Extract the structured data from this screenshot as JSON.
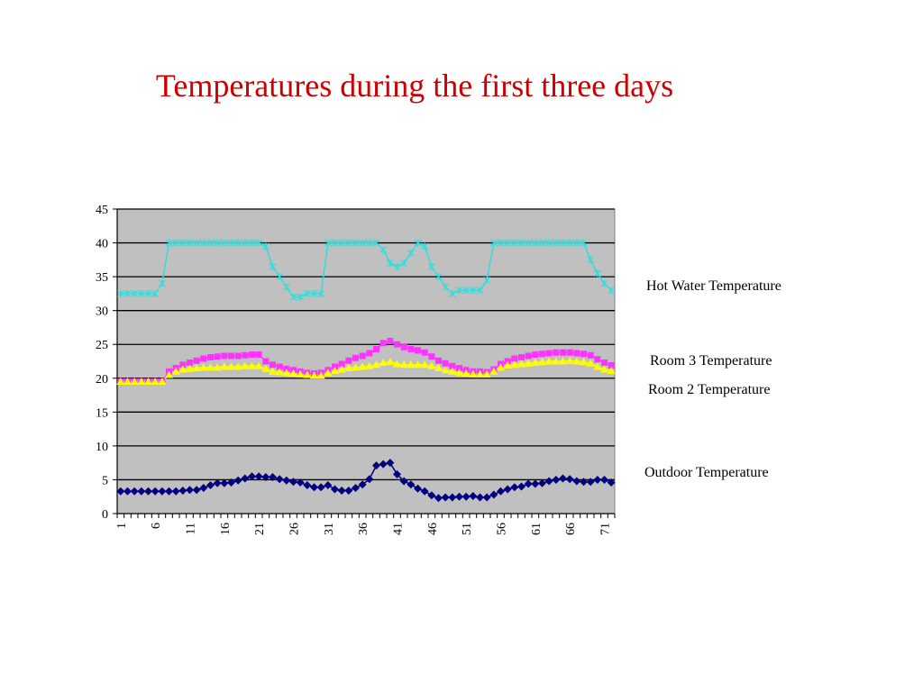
{
  "title": "Temperatures during the first three days",
  "chart_data": {
    "type": "line",
    "title": "Temperatures during the first three days",
    "xlabel": "",
    "ylabel": "",
    "ylim": [
      0,
      45
    ],
    "yticks": [
      0,
      5,
      10,
      15,
      20,
      25,
      30,
      35,
      40,
      45
    ],
    "x": [
      1,
      2,
      3,
      4,
      5,
      6,
      7,
      8,
      9,
      10,
      11,
      12,
      13,
      14,
      15,
      16,
      17,
      18,
      19,
      20,
      21,
      22,
      23,
      24,
      25,
      26,
      27,
      28,
      29,
      30,
      31,
      32,
      33,
      34,
      35,
      36,
      37,
      38,
      39,
      40,
      41,
      42,
      43,
      44,
      45,
      46,
      47,
      48,
      49,
      50,
      51,
      52,
      53,
      54,
      55,
      56,
      57,
      58,
      59,
      60,
      61,
      62,
      63,
      64,
      65,
      66,
      67,
      68,
      69,
      70,
      71,
      72
    ],
    "xtick_labels": [
      "1",
      "6",
      "11",
      "16",
      "21",
      "26",
      "31",
      "36",
      "41",
      "46",
      "51",
      "56",
      "61",
      "66",
      "71"
    ],
    "plot_background": "#c0c0c0",
    "grid": true,
    "legend_placement": "right",
    "series": [
      {
        "name": "Hot Water Temperature",
        "color": "#33dddd",
        "marker": "star",
        "values": [
          32.5,
          32.5,
          32.5,
          32.5,
          32.5,
          32.5,
          34,
          40,
          40,
          40,
          40,
          40,
          40,
          40,
          40,
          40,
          40,
          40,
          40,
          40,
          40,
          39.5,
          36.5,
          35,
          33.5,
          32,
          32,
          32.5,
          32.5,
          32.5,
          40,
          40,
          40,
          40,
          40,
          40,
          40,
          40,
          39,
          37,
          36.5,
          37,
          38.5,
          40,
          39.5,
          36.5,
          35,
          33.5,
          32.5,
          33,
          33,
          33,
          33,
          34.5,
          40,
          40,
          40,
          40,
          40,
          40,
          40,
          40,
          40,
          40,
          40,
          40,
          40,
          40,
          37.5,
          35.5,
          34,
          33
        ]
      },
      {
        "name": "Room 3 Temperature",
        "color": "#ff33ff",
        "marker": "square",
        "values": [
          19.5,
          19.5,
          19.5,
          19.5,
          19.5,
          19.5,
          19.5,
          21,
          21.5,
          22,
          22.3,
          22.6,
          22.9,
          23.1,
          23.2,
          23.3,
          23.3,
          23.3,
          23.4,
          23.5,
          23.5,
          22.5,
          22,
          21.7,
          21.4,
          21.2,
          21,
          20.8,
          20.7,
          20.8,
          21.2,
          21.7,
          22.1,
          22.6,
          23,
          23.3,
          23.7,
          24.3,
          25.2,
          25.5,
          25,
          24.6,
          24.3,
          24.1,
          23.8,
          23.2,
          22.6,
          22.2,
          21.8,
          21.5,
          21.2,
          21,
          21,
          20.9,
          21.3,
          22.1,
          22.5,
          22.9,
          23.1,
          23.3,
          23.5,
          23.6,
          23.7,
          23.8,
          23.8,
          23.8,
          23.7,
          23.6,
          23.4,
          22.8,
          22.3,
          21.9
        ]
      },
      {
        "name": "Room 2 Temperature",
        "color": "#ffff00",
        "marker": "triangle",
        "values": [
          19.5,
          19.5,
          19.5,
          19.5,
          19.5,
          19.5,
          19.5,
          20.5,
          21,
          21.3,
          21.4,
          21.5,
          21.6,
          21.6,
          21.6,
          21.7,
          21.7,
          21.7,
          21.8,
          21.8,
          21.8,
          21.4,
          21,
          20.9,
          20.8,
          20.7,
          20.6,
          20.5,
          20.4,
          20.4,
          20.8,
          21.1,
          21.3,
          21.5,
          21.6,
          21.7,
          21.8,
          22,
          22.3,
          22.4,
          22.1,
          22,
          22,
          22,
          22,
          21.8,
          21.5,
          21.2,
          21,
          20.8,
          20.7,
          20.6,
          20.6,
          20.6,
          21,
          21.6,
          21.9,
          22,
          22.1,
          22.2,
          22.3,
          22.4,
          22.5,
          22.5,
          22.5,
          22.6,
          22.5,
          22.4,
          22.2,
          21.7,
          21.3,
          21.1
        ]
      },
      {
        "name": "Outdoor Temperature",
        "color": "#000080",
        "marker": "diamond",
        "values": [
          3.3,
          3.3,
          3.3,
          3.3,
          3.3,
          3.3,
          3.3,
          3.3,
          3.3,
          3.4,
          3.5,
          3.5,
          3.8,
          4.2,
          4.5,
          4.5,
          4.6,
          4.9,
          5.2,
          5.5,
          5.5,
          5.4,
          5.4,
          5.1,
          4.9,
          4.7,
          4.6,
          4.2,
          3.9,
          3.9,
          4.2,
          3.6,
          3.4,
          3.4,
          3.8,
          4.3,
          5.1,
          7.1,
          7.3,
          7.5,
          5.8,
          4.8,
          4.3,
          3.7,
          3.3,
          2.7,
          2.3,
          2.4,
          2.4,
          2.5,
          2.5,
          2.6,
          2.4,
          2.4,
          2.8,
          3.3,
          3.6,
          3.9,
          4,
          4.4,
          4.4,
          4.5,
          4.8,
          5,
          5.2,
          5.1,
          4.8,
          4.7,
          4.7,
          5,
          5,
          4.6
        ]
      }
    ]
  }
}
